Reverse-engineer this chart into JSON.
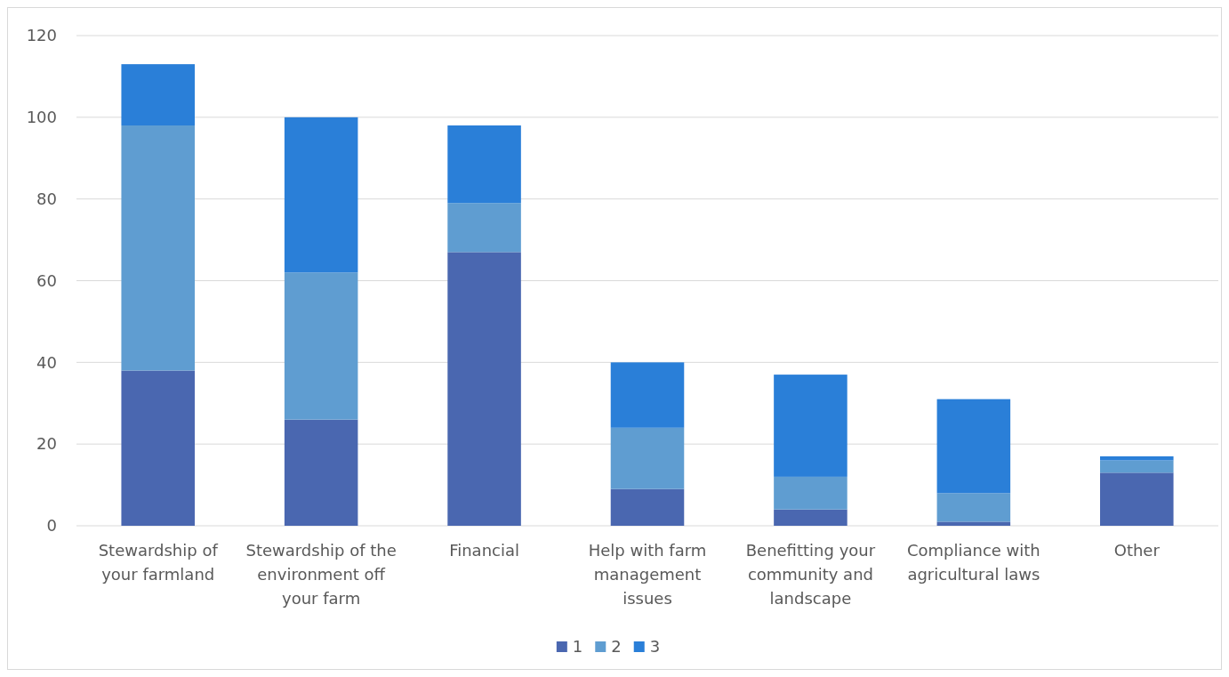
{
  "chart_data": {
    "type": "bar",
    "stacked": true,
    "categories": [
      "Stewardship of your farmland",
      "Stewardship of the environment off your farm",
      "Financial",
      "Help with farm management issues",
      "Benefitting your community and landscape",
      "Compliance with agricultural laws",
      "Other"
    ],
    "series": [
      {
        "name": "1",
        "color": "#4a67b0",
        "values": [
          38,
          26,
          67,
          9,
          4,
          1,
          13
        ]
      },
      {
        "name": "2",
        "color": "#5f9dd1",
        "values": [
          60,
          36,
          12,
          15,
          8,
          7,
          3
        ]
      },
      {
        "name": "3",
        "color": "#2a7fd8",
        "values": [
          15,
          38,
          19,
          16,
          25,
          23,
          1
        ]
      }
    ],
    "ylim": [
      0,
      120
    ],
    "yticks": [
      0,
      20,
      40,
      60,
      80,
      100,
      120
    ],
    "grid": "y",
    "legend": "bottom"
  }
}
